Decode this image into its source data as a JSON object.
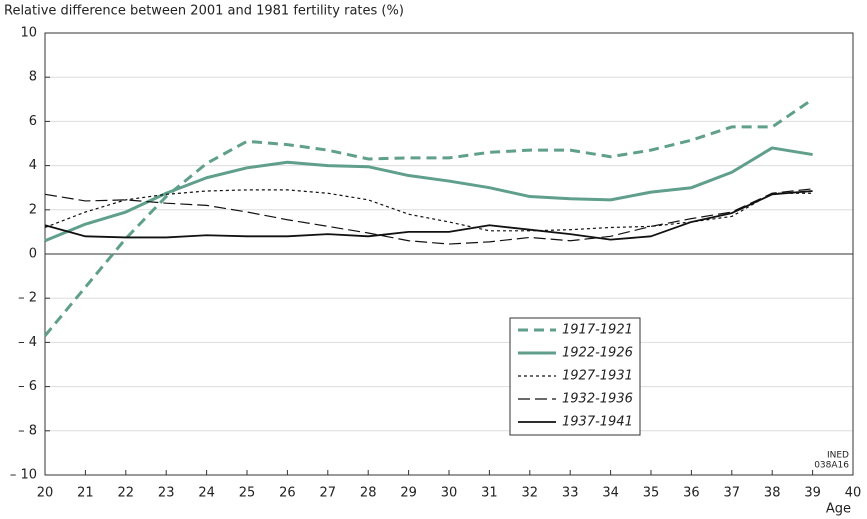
{
  "chart_data": {
    "type": "line",
    "title": "Relative difference between 2001 and 1981 fertility rates (%)",
    "x_label": "Age",
    "annotations": [
      "INED",
      "038A16"
    ],
    "x": [
      20,
      21,
      22,
      23,
      24,
      25,
      26,
      27,
      28,
      29,
      30,
      31,
      32,
      33,
      34,
      35,
      36,
      37,
      38,
      39
    ],
    "xlim": [
      20,
      40
    ],
    "xticks": [
      20,
      21,
      22,
      23,
      24,
      25,
      26,
      27,
      28,
      29,
      30,
      31,
      32,
      33,
      34,
      35,
      36,
      37,
      38,
      39,
      40
    ],
    "ylim": [
      -10,
      10
    ],
    "yticks": [
      {
        "value": -10,
        "label": "– 10"
      },
      {
        "value": -8,
        "label": "– 8"
      },
      {
        "value": -6,
        "label": "– 6"
      },
      {
        "value": -4,
        "label": "– 4"
      },
      {
        "value": -2,
        "label": "– 2"
      },
      0,
      2,
      4,
      6,
      8,
      10
    ],
    "grid": true,
    "legend": "lower-center",
    "series": [
      {
        "name": "1917-1921",
        "color": "#5f9f8c",
        "width": 3,
        "dash": "10,6",
        "values": [
          -3.7,
          -1.5,
          0.7,
          2.6,
          4.1,
          5.1,
          4.95,
          4.7,
          4.3,
          4.35,
          4.35,
          4.6,
          4.7,
          4.7,
          4.4,
          4.7,
          5.15,
          5.75,
          5.75,
          7.0
        ]
      },
      {
        "name": "1922-1926",
        "color": "#5f9f8c",
        "width": 3,
        "dash": "none",
        "values": [
          0.6,
          1.35,
          1.9,
          2.75,
          3.45,
          3.9,
          4.15,
          4.0,
          3.95,
          3.55,
          3.3,
          3.0,
          2.6,
          2.5,
          2.45,
          2.8,
          3.0,
          3.7,
          4.8,
          4.5
        ]
      },
      {
        "name": "1927-1931",
        "color": "#111111",
        "width": 1.2,
        "dash": "3,3",
        "values": [
          1.2,
          1.9,
          2.45,
          2.7,
          2.85,
          2.9,
          2.9,
          2.75,
          2.45,
          1.8,
          1.45,
          1.05,
          1.05,
          1.1,
          1.2,
          1.25,
          1.45,
          1.7,
          2.75,
          2.75
        ]
      },
      {
        "name": "1932-1936",
        "color": "#111111",
        "width": 1.2,
        "dash": "12,5",
        "values": [
          2.7,
          2.4,
          2.45,
          2.3,
          2.2,
          1.9,
          1.55,
          1.25,
          0.95,
          0.6,
          0.45,
          0.55,
          0.75,
          0.6,
          0.8,
          1.25,
          1.6,
          1.9,
          2.75,
          2.95
        ]
      },
      {
        "name": "1937-1941",
        "color": "#111111",
        "width": 1.8,
        "dash": "none",
        "values": [
          1.3,
          0.8,
          0.75,
          0.75,
          0.85,
          0.8,
          0.8,
          0.9,
          0.8,
          1.0,
          1.0,
          1.3,
          1.1,
          0.9,
          0.65,
          0.8,
          1.45,
          1.85,
          2.7,
          2.85
        ]
      }
    ]
  }
}
